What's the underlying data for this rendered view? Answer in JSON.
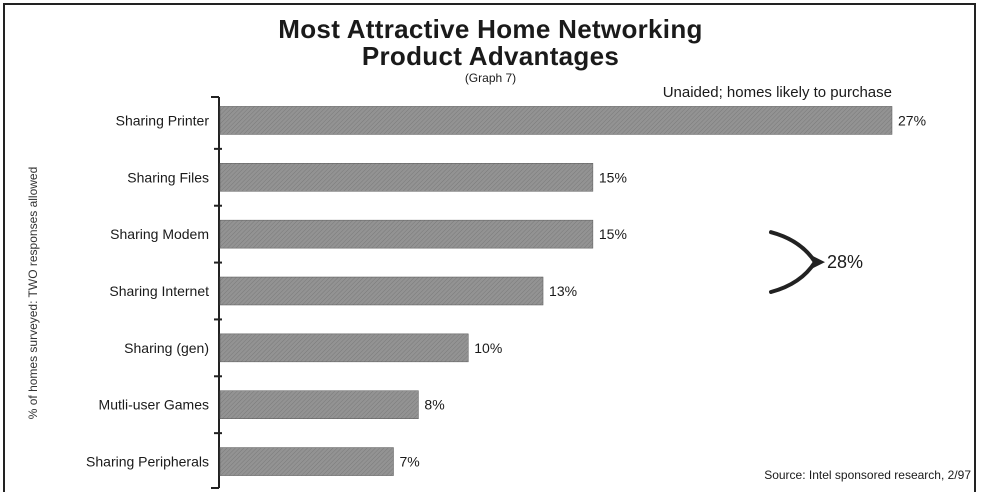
{
  "chart_data": {
    "type": "bar",
    "orientation": "horizontal",
    "title_lines": [
      "Most Attractive Home Networking",
      "Product Advantages"
    ],
    "graph_label": "(Graph 7)",
    "subtitle": "Unaided; homes likely to purchase",
    "ylabel": "% of homes surveyed: TWO responses allowed",
    "source": "Source: Intel sponsored research, 2/97",
    "categories": [
      "Sharing Printer",
      "Sharing Files",
      "Sharing Modem",
      "Sharing Internet",
      "Sharing (gen)",
      "Mutli-user Games",
      "Sharing Peripherals"
    ],
    "values": [
      27,
      15,
      15,
      13,
      10,
      8,
      7
    ],
    "value_labels": [
      "27%",
      "15%",
      "15%",
      "13%",
      "10%",
      "8%",
      "7%"
    ],
    "xlim": [
      0,
      27
    ],
    "bar_color": "#8a8a8a",
    "callout": {
      "label": "28%",
      "categories": [
        "Sharing Modem",
        "Sharing Internet"
      ]
    },
    "grid": false
  }
}
